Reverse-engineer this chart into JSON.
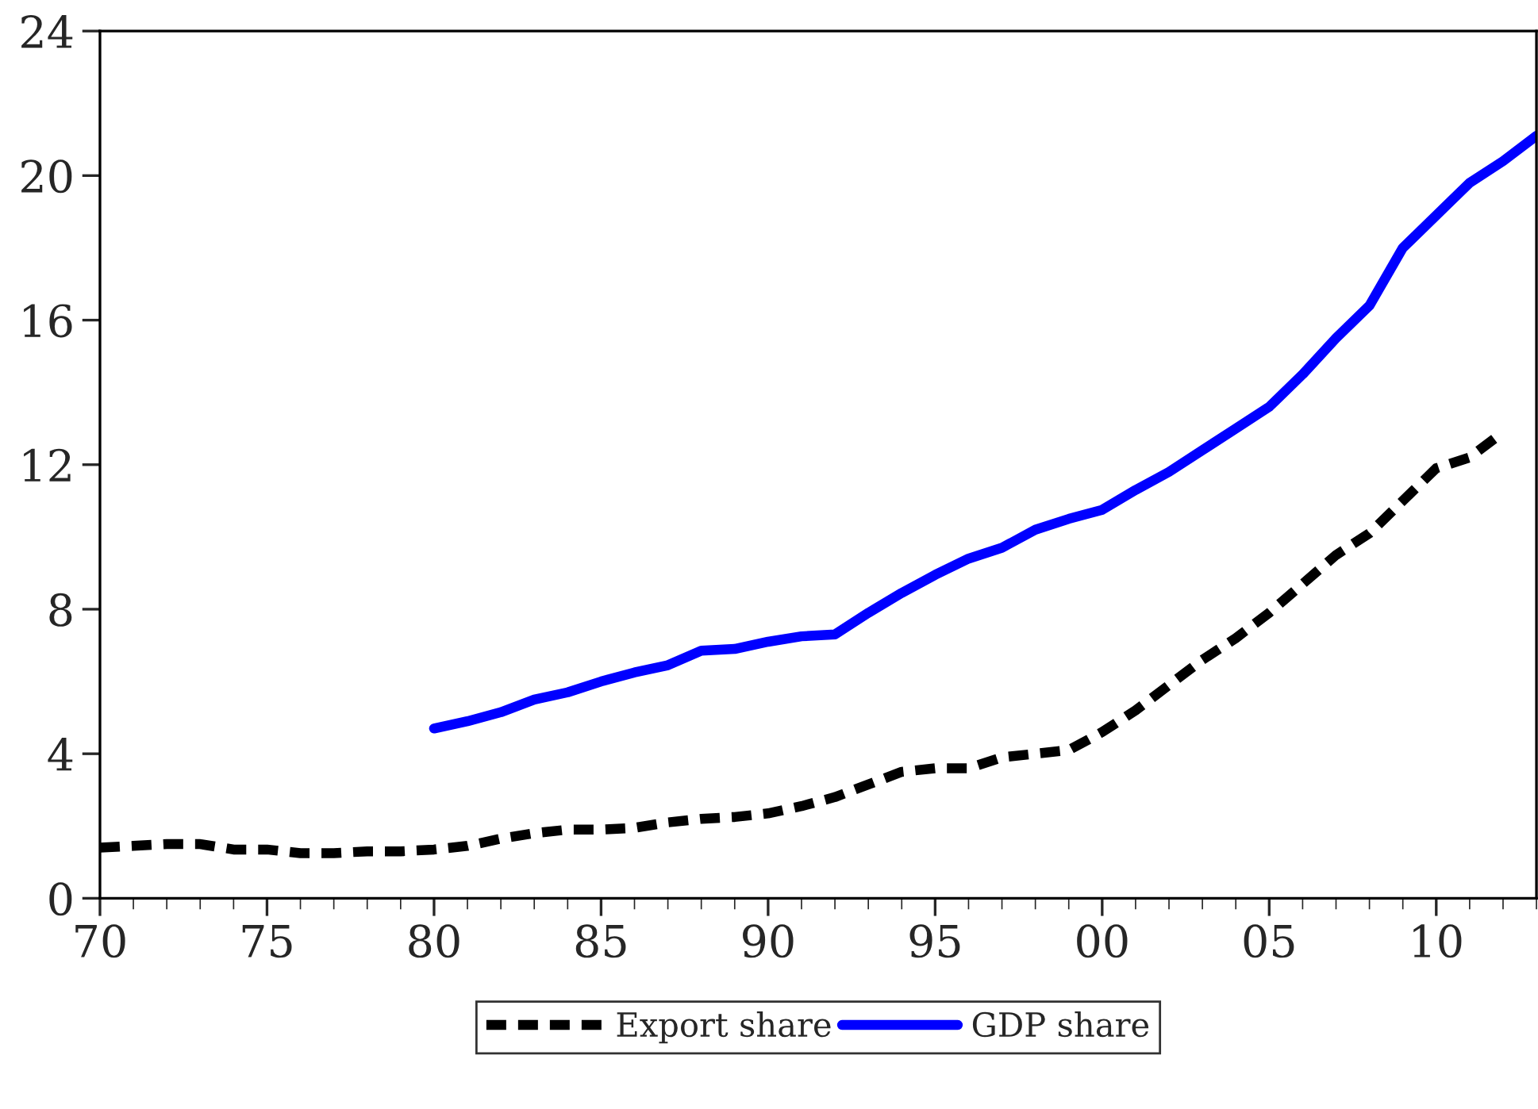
{
  "chart_data": {
    "type": "line",
    "xlim": [
      1970,
      2013
    ],
    "ylim": [
      0,
      24
    ],
    "yticks": [
      0,
      4,
      8,
      12,
      16,
      20,
      24
    ],
    "xticks": [
      {
        "value": 1970,
        "label": "70"
      },
      {
        "value": 1975,
        "label": "75"
      },
      {
        "value": 1980,
        "label": "80"
      },
      {
        "value": 1985,
        "label": "85"
      },
      {
        "value": 1990,
        "label": "90"
      },
      {
        "value": 1995,
        "label": "95"
      },
      {
        "value": 2000,
        "label": "00"
      },
      {
        "value": 2005,
        "label": "05"
      },
      {
        "value": 2010,
        "label": "10"
      }
    ],
    "grid": false,
    "legend": "bottom",
    "marker": "none",
    "series": [
      {
        "name": "Export share",
        "color": "#000000",
        "line_style": "dashed",
        "x": [
          1970,
          1971,
          1972,
          1973,
          1974,
          1975,
          1976,
          1977,
          1978,
          1979,
          1980,
          1981,
          1982,
          1983,
          1984,
          1985,
          1986,
          1987,
          1988,
          1989,
          1990,
          1991,
          1992,
          1993,
          1994,
          1995,
          1996,
          1997,
          1998,
          1999,
          2000,
          2001,
          2002,
          2003,
          2004,
          2005,
          2006,
          2007,
          2008,
          2009,
          2010,
          2011,
          2012
        ],
        "values": [
          1.4,
          1.45,
          1.5,
          1.5,
          1.35,
          1.35,
          1.25,
          1.25,
          1.3,
          1.3,
          1.35,
          1.45,
          1.65,
          1.8,
          1.9,
          1.9,
          1.95,
          2.1,
          2.2,
          2.25,
          2.35,
          2.55,
          2.8,
          3.15,
          3.5,
          3.6,
          3.6,
          3.9,
          4.0,
          4.1,
          4.6,
          5.2,
          5.9,
          6.6,
          7.2,
          7.9,
          8.7,
          9.5,
          10.1,
          11.0,
          11.9,
          12.2,
          12.9
        ]
      },
      {
        "name": "GDP share",
        "color": "#0000ff",
        "line_style": "solid",
        "x": [
          1980,
          1981,
          1982,
          1983,
          1984,
          1985,
          1986,
          1987,
          1988,
          1989,
          1990,
          1991,
          1992,
          1993,
          1994,
          1995,
          1996,
          1997,
          1998,
          1999,
          2000,
          2001,
          2002,
          2003,
          2004,
          2005,
          2006,
          2007,
          2008,
          2009,
          2010,
          2011,
          2012,
          2013
        ],
        "values": [
          4.7,
          4.9,
          5.15,
          5.5,
          5.7,
          6.0,
          6.25,
          6.45,
          6.85,
          6.9,
          7.1,
          7.25,
          7.3,
          7.9,
          8.45,
          8.95,
          9.4,
          9.7,
          10.2,
          10.5,
          10.75,
          11.3,
          11.8,
          12.4,
          13.0,
          13.6,
          14.5,
          15.5,
          16.4,
          18.0,
          18.9,
          19.8,
          20.4,
          21.1
        ]
      }
    ]
  }
}
